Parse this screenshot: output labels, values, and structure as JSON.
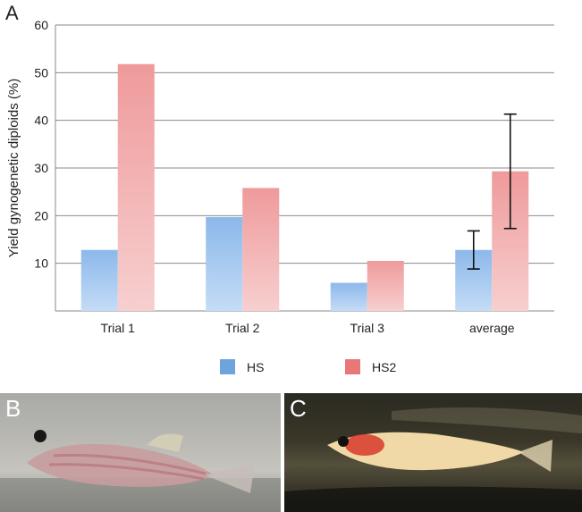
{
  "figure": {
    "panel_a_label": "A",
    "panel_b_label": "B",
    "panel_c_label": "C"
  },
  "chart_data": {
    "type": "bar",
    "title": "",
    "xlabel": "",
    "ylabel": "Yield gynogenetic diploids (%)",
    "ylim": [
      0,
      60
    ],
    "yticks": [
      10,
      20,
      30,
      40,
      50,
      60
    ],
    "grid": true,
    "legend_position": "bottom",
    "categories": [
      "Trial 1",
      "Trial 2",
      "Trial 3",
      "average"
    ],
    "series": [
      {
        "name": "HS",
        "color": "#6fa3dd",
        "values": [
          12.8,
          19.7,
          5.9,
          12.8
        ],
        "error": [
          null,
          null,
          null,
          4.0
        ]
      },
      {
        "name": "HS2",
        "color": "#e8777a",
        "values": [
          51.8,
          25.8,
          10.5,
          29.3
        ],
        "error": [
          null,
          null,
          null,
          12.0
        ]
      }
    ]
  }
}
